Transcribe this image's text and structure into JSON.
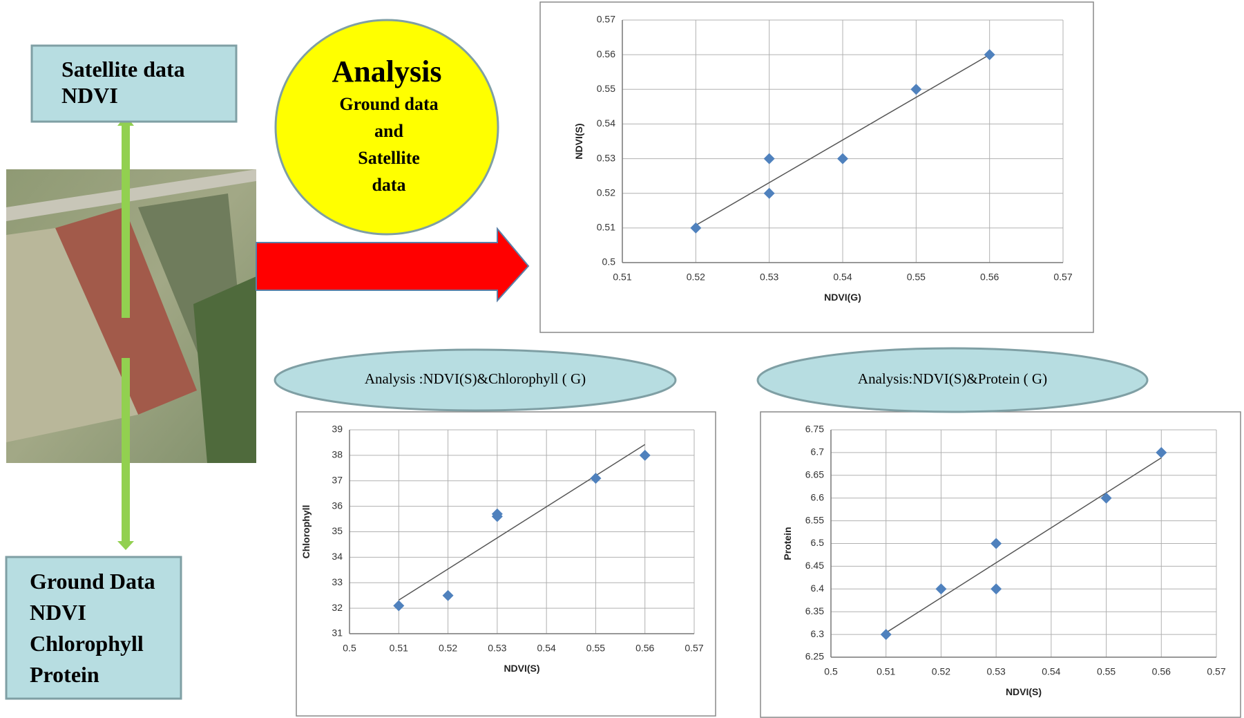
{
  "labels": {
    "satellite_box": [
      "Satellite data",
      "NDVI"
    ],
    "analysis_circle": {
      "title": "Analysis",
      "lines": [
        "Ground data",
        "and",
        "Satellite",
        "data"
      ]
    },
    "ground_box": [
      "Ground Data",
      "NDVI",
      "Chlorophyll",
      "Protein"
    ]
  },
  "chart_data": [
    {
      "type": "scatter",
      "x_label": "NDVI(G)",
      "y_label": "NDVI(S)",
      "x": [
        0.52,
        0.53,
        0.53,
        0.54,
        0.55,
        0.56
      ],
      "values": [
        0.51,
        0.53,
        0.52,
        0.53,
        0.55,
        0.56
      ],
      "color": "#4f81bd",
      "trendline": true,
      "grid": true,
      "xlim": [
        0.51,
        0.57
      ],
      "xticks": [
        0.51,
        0.52,
        0.53,
        0.54,
        0.55,
        0.56,
        0.57
      ],
      "ylim": [
        0.5,
        0.57
      ],
      "yticks": [
        0.5,
        0.51,
        0.52,
        0.53,
        0.54,
        0.55,
        0.56,
        0.57
      ]
    },
    {
      "type": "scatter",
      "title": "Analysis :NDVI(S)&Chlorophyll ( G)",
      "x_label": "NDVI(S)",
      "y_label": "Chlorophyll",
      "x": [
        0.51,
        0.52,
        0.53,
        0.53,
        0.55,
        0.56
      ],
      "values": [
        32.1,
        32.5,
        35.7,
        35.6,
        37.1,
        38.0
      ],
      "color": "#4f81bd",
      "trendline": true,
      "grid": true,
      "xlim": [
        0.5,
        0.57
      ],
      "xticks": [
        0.5,
        0.51,
        0.52,
        0.53,
        0.54,
        0.55,
        0.56,
        0.57
      ],
      "ylim": [
        31,
        39
      ],
      "yticks": [
        31,
        32,
        33,
        34,
        35,
        36,
        37,
        38,
        39
      ]
    },
    {
      "type": "scatter",
      "title": "Analysis:NDVI(S)&Protein ( G)",
      "x_label": "NDVI(S)",
      "y_label": "Protein",
      "x": [
        0.51,
        0.52,
        0.53,
        0.53,
        0.55,
        0.56
      ],
      "values": [
        6.3,
        6.4,
        6.5,
        6.4,
        6.6,
        6.7
      ],
      "color": "#4f81bd",
      "trendline": true,
      "grid": true,
      "xlim": [
        0.5,
        0.57
      ],
      "xticks": [
        0.5,
        0.51,
        0.52,
        0.53,
        0.54,
        0.55,
        0.56,
        0.57
      ],
      "ylim": [
        6.25,
        6.75
      ],
      "yticks": [
        6.25,
        6.3,
        6.35,
        6.4,
        6.45,
        6.5,
        6.55,
        6.6,
        6.65,
        6.7,
        6.75
      ]
    }
  ]
}
